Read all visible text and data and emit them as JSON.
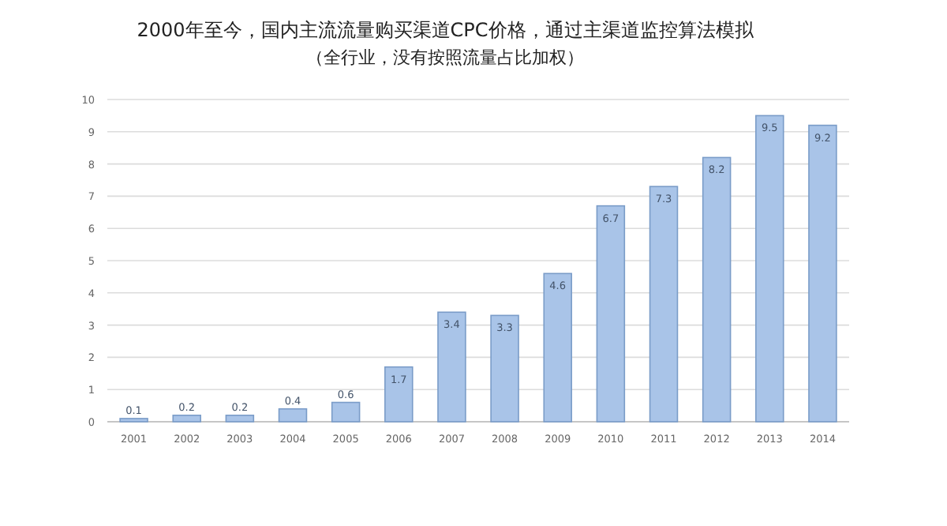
{
  "chart_data": {
    "type": "bar",
    "title": "2000年至今，国内主流流量购买渠道CPC价格，通过主渠道监控算法模拟",
    "subtitle": "（全行业，没有按照流量占比加权）",
    "categories": [
      "2001",
      "2002",
      "2003",
      "2004",
      "2005",
      "2006",
      "2007",
      "2008",
      "2009",
      "2010",
      "2011",
      "2012",
      "2013",
      "2014"
    ],
    "values": [
      0.1,
      0.2,
      0.2,
      0.4,
      0.6,
      1.7,
      3.4,
      3.3,
      4.6,
      6.7,
      7.3,
      8.2,
      9.5,
      9.2
    ],
    "color": "#a9c4e8",
    "ylim": [
      0,
      10
    ],
    "yticks": [
      0,
      1,
      2,
      3,
      4,
      5,
      6,
      7,
      8,
      9,
      10
    ],
    "grid": "y",
    "data_labels": true
  }
}
